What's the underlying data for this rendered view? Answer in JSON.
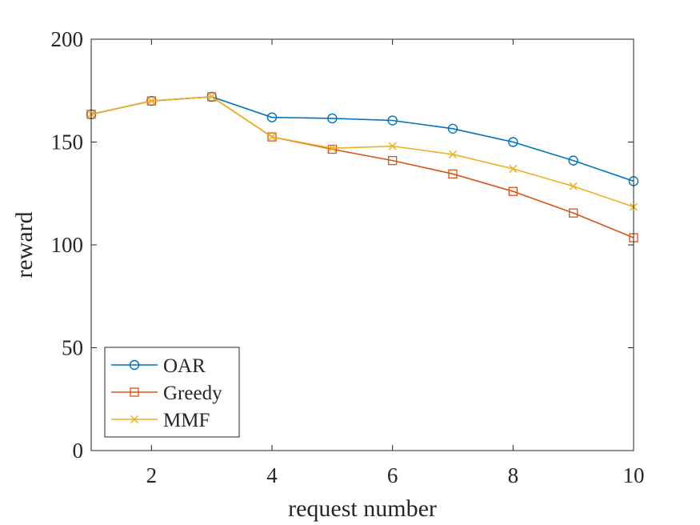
{
  "chart_data": {
    "type": "line",
    "title": "",
    "xlabel": "request number",
    "ylabel": "reward",
    "xlim": [
      1,
      10
    ],
    "ylim": [
      0,
      200
    ],
    "xticks": [
      2,
      4,
      6,
      8,
      10
    ],
    "yticks": [
      0,
      50,
      100,
      150,
      200
    ],
    "grid": false,
    "legend_position": "bottom-left",
    "x": [
      1,
      2,
      3,
      4,
      5,
      6,
      7,
      8,
      9,
      10
    ],
    "series": [
      {
        "name": "OAR",
        "color": "#0072BD",
        "marker": "circle",
        "values": [
          163.5,
          170,
          172,
          162,
          161.5,
          160.5,
          156.5,
          150,
          141,
          131
        ]
      },
      {
        "name": "Greedy",
        "color": "#D95319",
        "marker": "square",
        "values": [
          163.5,
          170,
          172,
          152.5,
          146.5,
          141,
          134.5,
          126,
          115.5,
          103.5
        ]
      },
      {
        "name": "MMF",
        "color": "#EDB120",
        "marker": "x",
        "values": [
          163.5,
          170,
          172,
          152.5,
          147,
          148,
          144,
          137,
          128.5,
          118.5
        ]
      }
    ]
  }
}
